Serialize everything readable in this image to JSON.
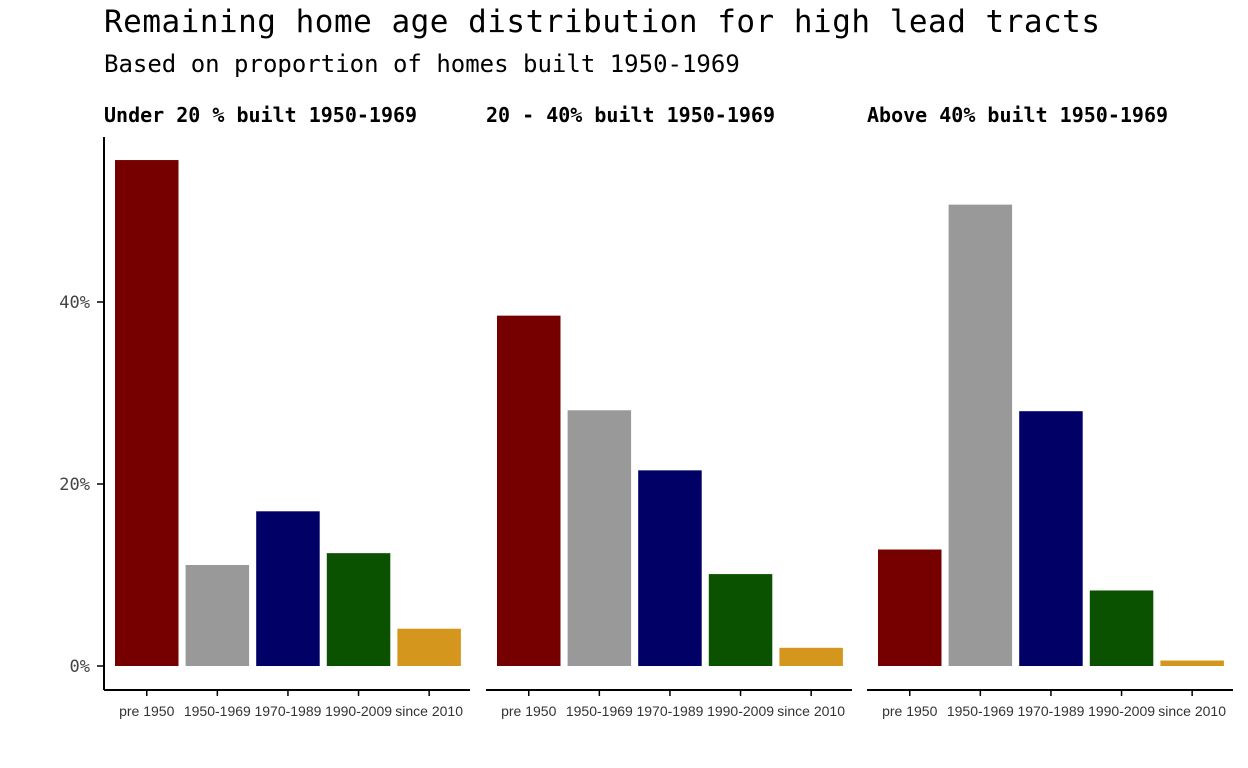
{
  "chart_data": {
    "type": "bar",
    "title": "Remaining home age distribution for high lead tracts",
    "subtitle": "Based on proportion of homes built 1950-1969",
    "xlabel": "",
    "ylabel": "",
    "ylim": [
      0,
      0.58
    ],
    "yticks": [
      0,
      0.2,
      0.4
    ],
    "ytick_labels": [
      "0%",
      "20%",
      "40%"
    ],
    "grid": false,
    "legend": "none",
    "categories": [
      "pre 1950",
      "1950-1969",
      "1970-1989",
      "1990-2009",
      "since 2010"
    ],
    "colors": [
      "#760000",
      "#999999",
      "#000066",
      "#0a5200",
      "#d4961c"
    ],
    "facets": [
      {
        "title": "Under 20 % built 1950-1969",
        "values": [
          0.556,
          0.111,
          0.17,
          0.124,
          0.041
        ]
      },
      {
        "title": "20 - 40% built 1950-1969",
        "values": [
          0.385,
          0.281,
          0.215,
          0.101,
          0.02
        ]
      },
      {
        "title": "Above 40% built 1950-1969",
        "values": [
          0.128,
          0.507,
          0.28,
          0.083,
          0.006
        ]
      }
    ]
  }
}
